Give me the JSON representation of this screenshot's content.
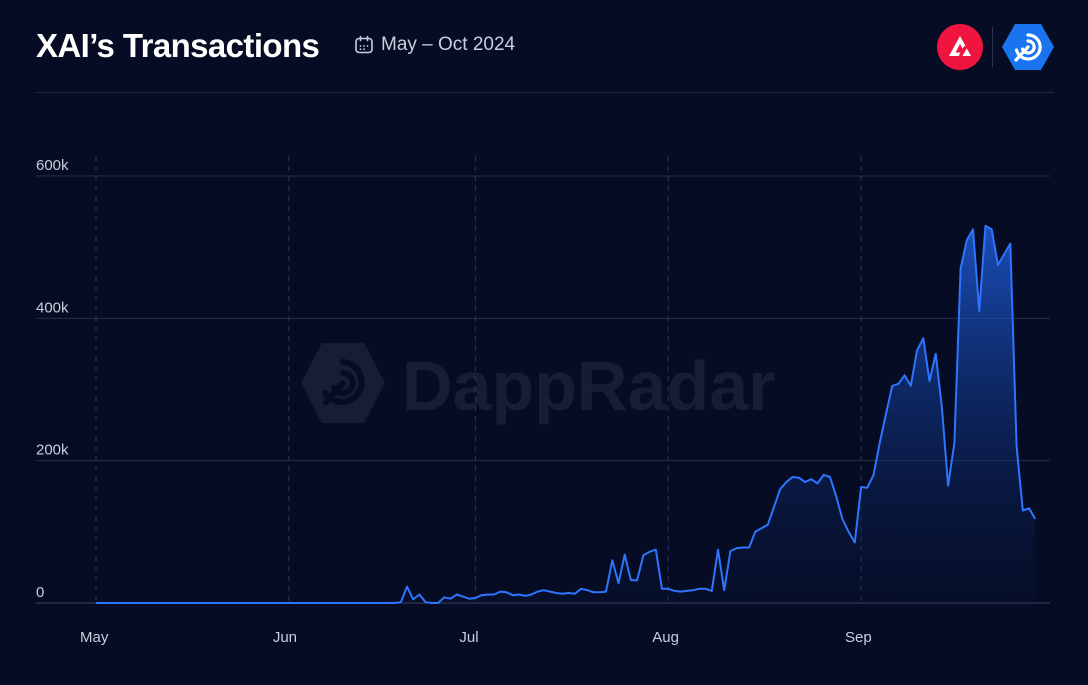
{
  "header": {
    "title": "XAI’s Transactions",
    "date_range": "May – Oct 2024",
    "icons": [
      "calendar-icon",
      "arbitrum-logo",
      "dappradar-logo"
    ]
  },
  "watermark": "DappRadar",
  "colors": {
    "background": "#050c23",
    "line": "#2f74ff",
    "fill_top": "#1e5bd6",
    "grid": "#24304d",
    "axis_text": "#c9cfdd",
    "brand_red": "#ef1540",
    "brand_blue": "#1a74f0"
  },
  "chart_data": {
    "type": "area",
    "title": "XAI’s Transactions",
    "xlabel": "",
    "ylabel": "",
    "ylim": [
      0,
      600000
    ],
    "yticks": [
      {
        "value": 0,
        "label": "0"
      },
      {
        "value": 200000,
        "label": "200k"
      },
      {
        "value": 400000,
        "label": "400k"
      },
      {
        "value": 600000,
        "label": "600k"
      }
    ],
    "xticks": [
      {
        "label": "May",
        "day": 0
      },
      {
        "label": "Jun",
        "day": 31
      },
      {
        "label": "Jul",
        "day": 61
      },
      {
        "label": "Aug",
        "day": 92
      },
      {
        "label": "Sep",
        "day": 123
      }
    ],
    "x_unit": "days since May 1, 2024",
    "xlim": [
      0,
      156
    ],
    "grid": {
      "horizontal": true,
      "vertical_dashed": true
    },
    "legend": "none",
    "series": [
      {
        "points": [
          [
            0,
            0
          ],
          [
            10,
            0
          ],
          [
            20,
            0
          ],
          [
            30,
            0
          ],
          [
            40,
            0
          ],
          [
            45,
            0
          ],
          [
            48,
            0
          ],
          [
            49,
            1000
          ],
          [
            50,
            23000
          ],
          [
            51,
            5000
          ],
          [
            52,
            12000
          ],
          [
            53,
            1000
          ],
          [
            54,
            0
          ],
          [
            55,
            0
          ],
          [
            56,
            8000
          ],
          [
            57,
            6000
          ],
          [
            58,
            12000
          ],
          [
            59,
            9000
          ],
          [
            60,
            6000
          ],
          [
            61,
            7000
          ],
          [
            62,
            11000
          ],
          [
            63,
            12000
          ],
          [
            64,
            12000
          ],
          [
            65,
            16000
          ],
          [
            66,
            15000
          ],
          [
            67,
            11000
          ],
          [
            68,
            12000
          ],
          [
            69,
            10000
          ],
          [
            70,
            12000
          ],
          [
            71,
            16000
          ],
          [
            72,
            18000
          ],
          [
            73,
            16000
          ],
          [
            74,
            14000
          ],
          [
            75,
            13000
          ],
          [
            76,
            14000
          ],
          [
            77,
            13000
          ],
          [
            78,
            20000
          ],
          [
            79,
            18000
          ],
          [
            80,
            15000
          ],
          [
            81,
            15000
          ],
          [
            82,
            16000
          ],
          [
            83,
            60000
          ],
          [
            84,
            28000
          ],
          [
            85,
            68000
          ],
          [
            86,
            32000
          ],
          [
            87,
            32000
          ],
          [
            88,
            67000
          ],
          [
            89,
            72000
          ],
          [
            90,
            75000
          ],
          [
            91,
            20000
          ],
          [
            92,
            20000
          ],
          [
            93,
            17000
          ],
          [
            94,
            16000
          ],
          [
            95,
            17000
          ],
          [
            96,
            18000
          ],
          [
            97,
            20000
          ],
          [
            98,
            20000
          ],
          [
            99,
            17000
          ],
          [
            100,
            75000
          ],
          [
            101,
            18000
          ],
          [
            102,
            73000
          ],
          [
            103,
            77000
          ],
          [
            104,
            78000
          ],
          [
            105,
            78000
          ],
          [
            106,
            100000
          ],
          [
            107,
            105000
          ],
          [
            108,
            110000
          ],
          [
            109,
            135000
          ],
          [
            110,
            160000
          ],
          [
            111,
            170000
          ],
          [
            112,
            177000
          ],
          [
            113,
            176000
          ],
          [
            114,
            170000
          ],
          [
            115,
            174000
          ],
          [
            116,
            168000
          ],
          [
            117,
            180000
          ],
          [
            118,
            177000
          ],
          [
            119,
            150000
          ],
          [
            120,
            118000
          ],
          [
            121,
            100000
          ],
          [
            122,
            85000
          ],
          [
            123,
            163000
          ],
          [
            124,
            162000
          ],
          [
            125,
            180000
          ],
          [
            126,
            225000
          ],
          [
            127,
            265000
          ],
          [
            128,
            305000
          ],
          [
            129,
            308000
          ],
          [
            130,
            320000
          ],
          [
            131,
            305000
          ],
          [
            132,
            355000
          ],
          [
            133,
            372000
          ],
          [
            134,
            312000
          ],
          [
            135,
            350000
          ],
          [
            136,
            275000
          ],
          [
            137,
            165000
          ],
          [
            138,
            225000
          ],
          [
            139,
            470000
          ],
          [
            140,
            510000
          ],
          [
            141,
            525000
          ],
          [
            142,
            410000
          ],
          [
            143,
            530000
          ],
          [
            144,
            525000
          ],
          [
            145,
            475000
          ],
          [
            146,
            490000
          ],
          [
            147,
            505000
          ],
          [
            148,
            220000
          ],
          [
            149,
            130000
          ],
          [
            150,
            133000
          ],
          [
            151,
            118000
          ]
        ]
      }
    ]
  }
}
